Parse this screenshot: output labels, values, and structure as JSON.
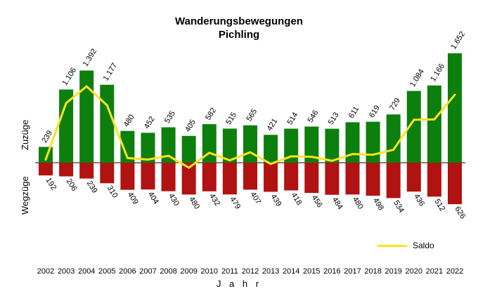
{
  "colors": {
    "positive": "#0d7f0d",
    "negative": "#b11212",
    "saldo": "#ffe21f"
  },
  "chart_data": {
    "type": "bar",
    "title": "Wanderungsbewegungen",
    "subtitle": "Pichling",
    "xlabel": "J a h r",
    "ylabel_positive": "Zuzüge",
    "ylabel_negative": "Wegzüge",
    "categories": [
      "2002",
      "2003",
      "2004",
      "2005",
      "2006",
      "2007",
      "2008",
      "2009",
      "2010",
      "2011",
      "2012",
      "2013",
      "2014",
      "2015",
      "2016",
      "2017",
      "2018",
      "2019",
      "2020",
      "2021",
      "2022"
    ],
    "series": [
      {
        "name": "Zuzüge",
        "values": [
          239,
          1106,
          1392,
          1177,
          480,
          452,
          535,
          405,
          582,
          515,
          565,
          421,
          514,
          546,
          513,
          611,
          619,
          729,
          1084,
          1166,
          1652
        ]
      },
      {
        "name": "Wegzüge",
        "values": [
          192,
          206,
          239,
          310,
          409,
          404,
          430,
          480,
          432,
          479,
          407,
          439,
          418,
          456,
          484,
          480,
          498,
          534,
          436,
          512,
          626
        ]
      },
      {
        "name": "Saldo",
        "type": "line"
      }
    ],
    "value_labels_positive": [
      "239",
      "1.106",
      "1.392",
      "1.177",
      "480",
      "452",
      "535",
      "405",
      "582",
      "515",
      "565",
      "421",
      "514",
      "546",
      "513",
      "611",
      "619",
      "729",
      "1.084",
      "1.166",
      "1.652"
    ],
    "value_labels_negative": [
      "192",
      "206",
      "239",
      "310",
      "409",
      "404",
      "430",
      "480",
      "432",
      "479",
      "407",
      "439",
      "418",
      "456",
      "484",
      "480",
      "498",
      "534",
      "436",
      "512",
      "626"
    ],
    "ylim": [
      -700,
      1700
    ],
    "legend_position": "bottom-right",
    "grid": false
  }
}
